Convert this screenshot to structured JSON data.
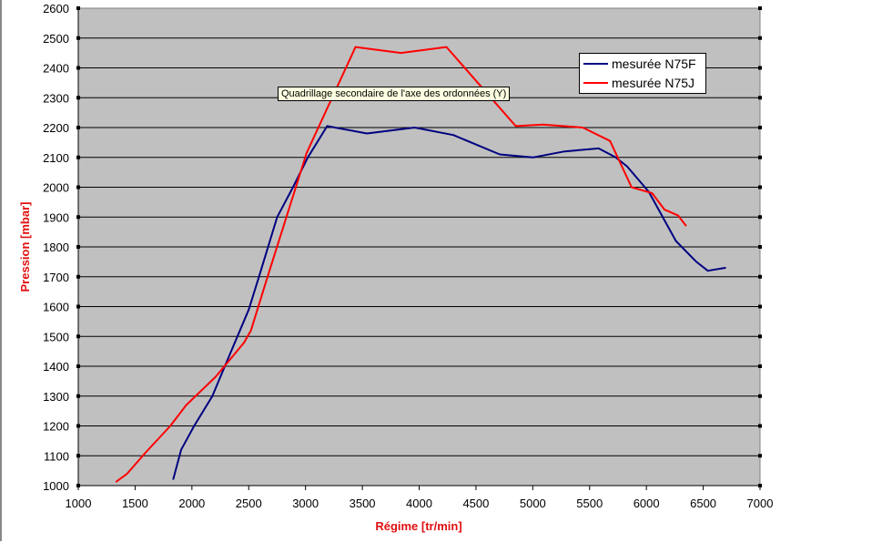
{
  "chart_data": {
    "type": "line",
    "title": "",
    "xlabel": "Régime [tr/min]",
    "ylabel": "Pression [mbar]",
    "xlim": [
      1000,
      7000
    ],
    "ylim": [
      1000,
      2600
    ],
    "xticks": [
      1000,
      1500,
      2000,
      2500,
      3000,
      3500,
      4000,
      4500,
      5000,
      5500,
      6000,
      6500,
      7000
    ],
    "yticks": [
      1000,
      1100,
      1200,
      1300,
      1400,
      1500,
      1600,
      1700,
      1800,
      1900,
      2000,
      2100,
      2200,
      2300,
      2400,
      2500,
      2600
    ],
    "grid": "horizontal",
    "legend_position": "top-right",
    "series": [
      {
        "name": "mesurée N75F",
        "color": "#000080",
        "x": [
          1835,
          1905,
          2020,
          2180,
          2290,
          2500,
          2590,
          2750,
          2890,
          3020,
          3190,
          3540,
          3960,
          4300,
          4710,
          5000,
          5280,
          5580,
          5730,
          5830,
          6020,
          6260,
          6440,
          6540,
          6700
        ],
        "y": [
          1020,
          1120,
          1200,
          1300,
          1400,
          1590,
          1700,
          1900,
          2000,
          2100,
          2205,
          2180,
          2200,
          2175,
          2110,
          2100,
          2120,
          2130,
          2100,
          2070,
          1985,
          1820,
          1750,
          1720,
          1730
        ]
      },
      {
        "name": "mesurée N75J",
        "color": "#ff0000",
        "x": [
          1330,
          1430,
          1590,
          1810,
          1950,
          2210,
          2460,
          2520,
          2670,
          3010,
          3440,
          3840,
          4240,
          4850,
          5090,
          5440,
          5680,
          5870,
          6050,
          6160,
          6280,
          6350
        ],
        "y": [
          1012,
          1040,
          1110,
          1200,
          1270,
          1365,
          1480,
          1520,
          1705,
          2115,
          2470,
          2450,
          2470,
          2205,
          2210,
          2200,
          2155,
          2000,
          1980,
          1925,
          1905,
          1870
        ]
      }
    ]
  },
  "tooltip": "Quadrillage secondaire de l'axe des ordonnées (Y)",
  "colors": {
    "plot_bg": "#c0c0c0",
    "axis_title": "#e01010"
  }
}
